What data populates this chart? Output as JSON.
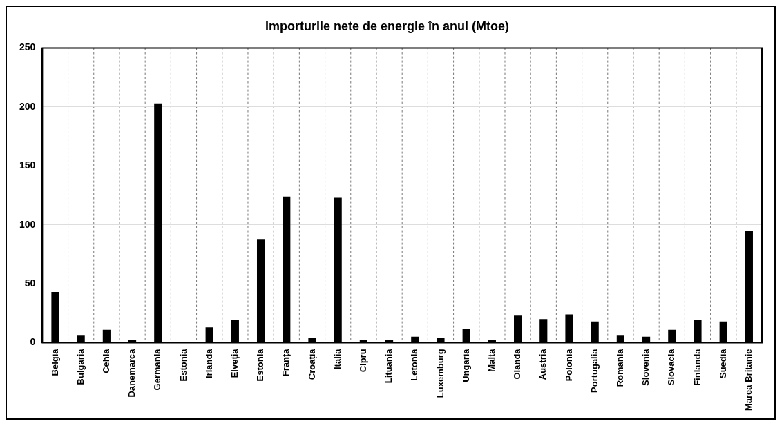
{
  "chart_data": {
    "type": "bar",
    "title": "Importurile nete de energie în anul (Mtoe)",
    "categories": [
      "Belgia",
      "Bulgaria",
      "Cehia",
      "Danemarca",
      "Germania",
      "Estonia",
      "Irlanda",
      "Elveția",
      "Estonia",
      "Franța",
      "Croația",
      "Italia",
      "Cipru",
      "Lituania",
      "Letonia",
      "Luxemburg",
      "Ungaria",
      "Malta",
      "Olanda",
      "Austria",
      "Polonia",
      "Portugalia",
      "Romania",
      "Slovenia",
      "Slovacia",
      "Finlanda",
      "Suedia",
      "Marea Britanie"
    ],
    "values": [
      43,
      6,
      11,
      2,
      203,
      0.5,
      13,
      19,
      88,
      124,
      4,
      123,
      2,
      2,
      5,
      4,
      12,
      2,
      23,
      20,
      24,
      18,
      6,
      5,
      11,
      19,
      18,
      95
    ],
    "color": "#000000",
    "ylim": [
      0,
      250
    ],
    "yticks": [
      0,
      50,
      100,
      150,
      200,
      250
    ],
    "grid": true
  }
}
